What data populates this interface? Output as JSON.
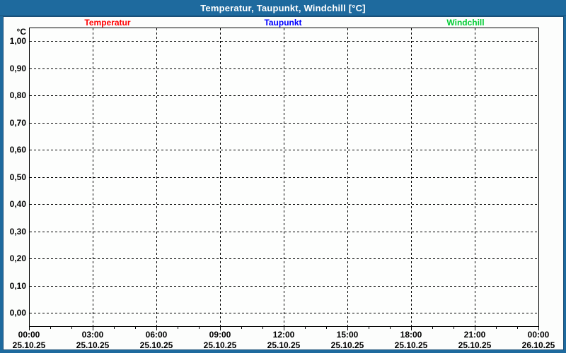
{
  "window": {
    "title": "Temperatur, Taupunkt, Windchill [°C]"
  },
  "colors": {
    "titlebar_bg": "#1e6a9e",
    "title_text": "#ffffff",
    "panel_bg": "#fcfdfc",
    "grid": "#000000",
    "temperatur": "#ff0000",
    "taupunkt": "#0000ff",
    "windchill": "#00cc33"
  },
  "chart_data": {
    "type": "line",
    "title": "Temperatur, Taupunkt, Windchill [°C]",
    "ylabel": "°C",
    "ylim": [
      0,
      1
    ],
    "yticks": [
      "1,00",
      "0,90",
      "0,80",
      "0,70",
      "0,60",
      "0,50",
      "0,40",
      "0,30",
      "0,20",
      "0,10",
      "0,00"
    ],
    "x_time_ticks": [
      "00:00",
      "03:00",
      "06:00",
      "09:00",
      "12:00",
      "15:00",
      "18:00",
      "21:00",
      "00:00"
    ],
    "x_date_ticks": [
      "25.10.25",
      "25.10.25",
      "25.10.25",
      "25.10.25",
      "25.10.25",
      "25.10.25",
      "25.10.25",
      "25.10.25",
      "26.10.25"
    ],
    "grid": "dashed",
    "legend_position": "top",
    "series": [
      {
        "name": "Temperatur",
        "color": "#ff0000",
        "values": []
      },
      {
        "name": "Taupunkt",
        "color": "#0000ff",
        "values": []
      },
      {
        "name": "Windchill",
        "color": "#00cc33",
        "values": []
      }
    ]
  }
}
